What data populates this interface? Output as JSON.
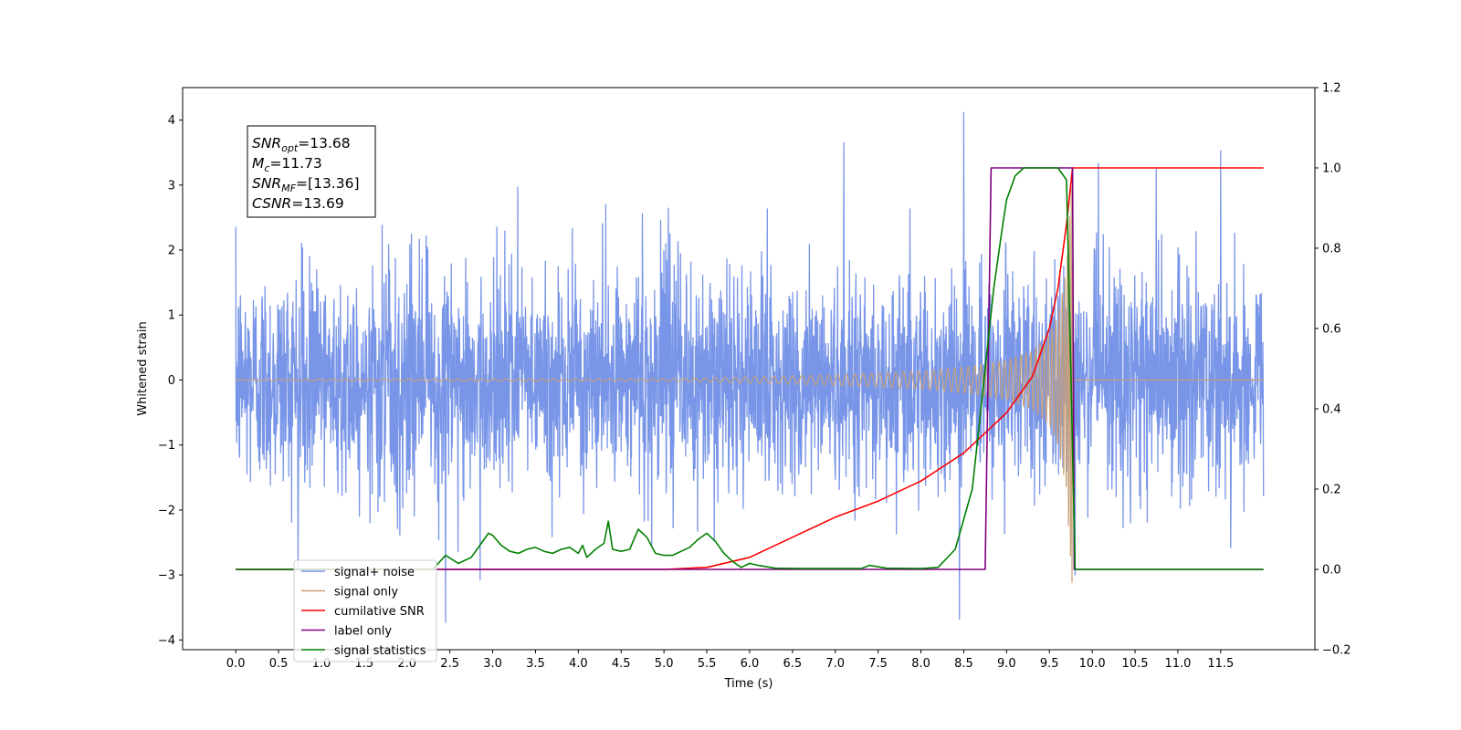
{
  "chart_data": {
    "type": "line",
    "xlabel": "Time (s)",
    "ylabel_left": "Whitened strain",
    "ylabel_right": "",
    "x_range": [
      -0.62,
      12.6
    ],
    "y_left_range": [
      -4.15,
      4.5
    ],
    "y_right_range": [
      -0.2,
      1.2
    ],
    "x_ticks": [
      0.0,
      0.5,
      1.0,
      1.5,
      2.0,
      2.5,
      3.0,
      3.5,
      4.0,
      4.5,
      5.0,
      5.5,
      6.0,
      6.5,
      7.0,
      7.5,
      8.0,
      8.5,
      9.0,
      9.5,
      10.0,
      10.5,
      11.0,
      11.5
    ],
    "x_tick_labels": [
      "0.0",
      "0.5",
      "1.0",
      "1.5",
      "2.0",
      "2.5",
      "3.0",
      "3.5",
      "4.0",
      "4.5",
      "5.0",
      "5.5",
      "6.0",
      "6.5",
      "7.0",
      "7.5",
      "8.0",
      "8.5",
      "9.0",
      "9.5",
      "10.0",
      "10.5",
      "11.0",
      "11.5"
    ],
    "y_left_ticks": [
      -4,
      -3,
      -2,
      -1,
      0,
      1,
      2,
      3,
      4
    ],
    "y_left_tick_labels": [
      "−4",
      "−3",
      "−2",
      "−1",
      "0",
      "1",
      "2",
      "3",
      "4"
    ],
    "y_right_ticks": [
      -0.2,
      0.0,
      0.2,
      0.4,
      0.6,
      0.8,
      1.0,
      1.2
    ],
    "y_right_tick_labels": [
      "−0.2",
      "0.0",
      "0.2",
      "0.4",
      "0.6",
      "0.8",
      "1.0",
      "1.2"
    ],
    "grid": false,
    "legend_position": "bottom-left",
    "annotation": {
      "lines": [
        {
          "sym": "SNR",
          "sub": "opt",
          "value": "=13.68"
        },
        {
          "sym": "M",
          "sub": "c",
          "value": "=11.73"
        },
        {
          "sym": "SNR",
          "sub": "MF",
          "value": "=[13.36]"
        },
        {
          "sym": "CSNR",
          "sub": "",
          "value": "=13.69"
        }
      ]
    },
    "series": [
      {
        "name": "signal+ noise",
        "axis": "left",
        "color": "#7895e8",
        "style": "noise",
        "x_range": [
          0.0,
          12.0
        ],
        "sigma": 0.85,
        "y_min": -3.75,
        "y_max": 4.15,
        "peaks": [
          [
            8.5,
            4.12
          ],
          [
            11.5,
            3.53
          ],
          [
            7.1,
            3.65
          ],
          [
            8.45,
            -3.68
          ],
          [
            2.45,
            -3.73
          ],
          [
            9.8,
            -3.0
          ]
        ]
      },
      {
        "name": "signal only",
        "axis": "left",
        "color": "#c7a077",
        "style": "chirp",
        "t_start": 0.0,
        "t_end": 12.0,
        "t_coalescence": 9.77,
        "amplitude_points": [
          [
            0.0,
            0.01
          ],
          [
            5.0,
            0.02
          ],
          [
            6.0,
            0.05
          ],
          [
            7.0,
            0.08
          ],
          [
            8.0,
            0.14
          ],
          [
            8.5,
            0.2
          ],
          [
            9.0,
            0.3
          ],
          [
            9.3,
            0.45
          ],
          [
            9.5,
            0.7
          ],
          [
            9.6,
            1.0
          ],
          [
            9.7,
            1.7
          ],
          [
            9.77,
            3.3
          ]
        ]
      },
      {
        "name": "cumilative SNR",
        "axis": "right",
        "color": "#ff0000",
        "style": "line",
        "x": [
          0.0,
          5.0,
          5.5,
          6.0,
          6.5,
          7.0,
          7.5,
          8.0,
          8.5,
          9.0,
          9.3,
          9.5,
          9.6,
          9.7,
          9.77,
          9.78,
          12.0
        ],
        "y": [
          0.0,
          0.0,
          0.005,
          0.03,
          0.08,
          0.13,
          0.17,
          0.22,
          0.29,
          0.39,
          0.48,
          0.6,
          0.7,
          0.86,
          1.0,
          1.0,
          1.0
        ]
      },
      {
        "name": "label only",
        "axis": "right",
        "color": "#800080",
        "style": "line",
        "x": [
          0.0,
          8.75,
          8.82,
          9.77,
          9.79,
          12.0
        ],
        "y": [
          0.0,
          0.0,
          1.0,
          1.0,
          0.0,
          0.0
        ]
      },
      {
        "name": "signal statistics",
        "axis": "right",
        "color": "#008000",
        "style": "line",
        "x": [
          0.0,
          2.3,
          2.45,
          2.6,
          2.75,
          2.85,
          2.95,
          3.0,
          3.1,
          3.2,
          3.3,
          3.4,
          3.5,
          3.6,
          3.7,
          3.8,
          3.9,
          4.0,
          4.05,
          4.1,
          4.2,
          4.3,
          4.35,
          4.4,
          4.5,
          4.6,
          4.7,
          4.8,
          4.9,
          5.0,
          5.1,
          5.2,
          5.3,
          5.4,
          5.5,
          5.6,
          5.7,
          5.8,
          5.9,
          6.0,
          6.1,
          6.3,
          6.6,
          7.0,
          7.3,
          7.4,
          7.6,
          8.0,
          8.2,
          8.4,
          8.6,
          8.75,
          8.85,
          8.95,
          9.0,
          9.1,
          9.2,
          9.4,
          9.6,
          9.7,
          9.75,
          9.8,
          12.0
        ],
        "y": [
          0.0,
          0.0,
          0.035,
          0.015,
          0.03,
          0.06,
          0.09,
          0.085,
          0.06,
          0.045,
          0.04,
          0.05,
          0.055,
          0.045,
          0.04,
          0.05,
          0.055,
          0.04,
          0.06,
          0.03,
          0.05,
          0.065,
          0.12,
          0.05,
          0.045,
          0.05,
          0.1,
          0.08,
          0.04,
          0.035,
          0.035,
          0.045,
          0.055,
          0.075,
          0.09,
          0.07,
          0.04,
          0.02,
          0.005,
          0.015,
          0.01,
          0.003,
          0.002,
          0.002,
          0.002,
          0.01,
          0.003,
          0.002,
          0.005,
          0.05,
          0.2,
          0.5,
          0.7,
          0.85,
          0.92,
          0.98,
          1.0,
          1.0,
          1.0,
          0.97,
          0.5,
          0.0,
          0.0
        ]
      }
    ]
  }
}
